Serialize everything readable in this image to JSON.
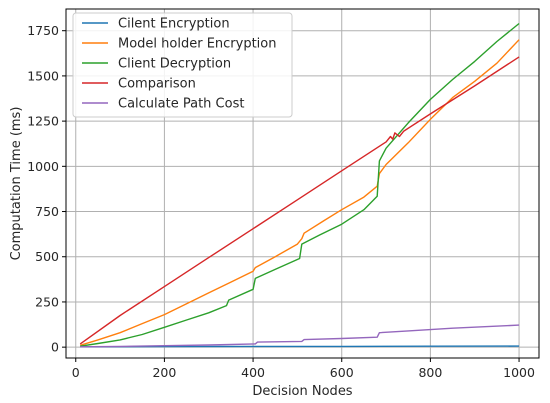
{
  "chart_data": {
    "type": "line",
    "title": "",
    "xlabel": "Decision Nodes",
    "ylabel": "Computation Time (ms)",
    "xlim": [
      -22,
      1045
    ],
    "ylim": [
      -60,
      1870
    ],
    "xticks": [
      0,
      200,
      400,
      600,
      800,
      1000
    ],
    "yticks": [
      0,
      250,
      500,
      750,
      1000,
      1250,
      1500,
      1750
    ],
    "grid": true,
    "legend_position": "top-left",
    "series": [
      {
        "name": "Cilent Encryption",
        "color": "#1f77b4",
        "x": [
          10,
          200,
          400,
          600,
          800,
          1000
        ],
        "y": [
          2,
          3,
          4,
          4,
          5,
          6
        ]
      },
      {
        "name": "Model holder Encryption",
        "color": "#ff7f0e",
        "x": [
          10,
          50,
          100,
          150,
          200,
          250,
          300,
          350,
          400,
          405,
          450,
          500,
          510,
          515,
          560,
          600,
          650,
          680,
          685,
          700,
          750,
          800,
          850,
          900,
          950,
          1000
        ],
        "y": [
          10,
          40,
          80,
          130,
          180,
          240,
          300,
          360,
          420,
          440,
          500,
          570,
          600,
          630,
          700,
          760,
          830,
          890,
          960,
          1010,
          1130,
          1260,
          1380,
          1470,
          1570,
          1700
        ]
      },
      {
        "name": "Client Decryption",
        "color": "#2ca02c",
        "x": [
          10,
          50,
          100,
          150,
          200,
          250,
          300,
          340,
          345,
          400,
          405,
          450,
          505,
          510,
          550,
          600,
          650,
          680,
          685,
          700,
          750,
          800,
          850,
          900,
          950,
          1000
        ],
        "y": [
          5,
          20,
          40,
          70,
          110,
          150,
          190,
          230,
          260,
          320,
          380,
          430,
          490,
          570,
          620,
          680,
          760,
          835,
          1030,
          1100,
          1240,
          1370,
          1480,
          1580,
          1690,
          1790
        ]
      },
      {
        "name": "Comparison",
        "color": "#d62728",
        "x": [
          10,
          100,
          200,
          300,
          400,
          500,
          600,
          700,
          710,
          715,
          720,
          730,
          740,
          800,
          900,
          1000
        ],
        "y": [
          18,
          175,
          335,
          495,
          655,
          815,
          975,
          1135,
          1165,
          1150,
          1185,
          1165,
          1195,
          1290,
          1445,
          1605
        ]
      },
      {
        "name": "Calculate Path Cost",
        "color": "#9467bd",
        "x": [
          10,
          100,
          200,
          300,
          405,
          410,
          510,
          515,
          600,
          680,
          685,
          750,
          850,
          1000
        ],
        "y": [
          2,
          4,
          8,
          12,
          18,
          28,
          32,
          42,
          48,
          55,
          80,
          90,
          105,
          122
        ]
      }
    ]
  }
}
